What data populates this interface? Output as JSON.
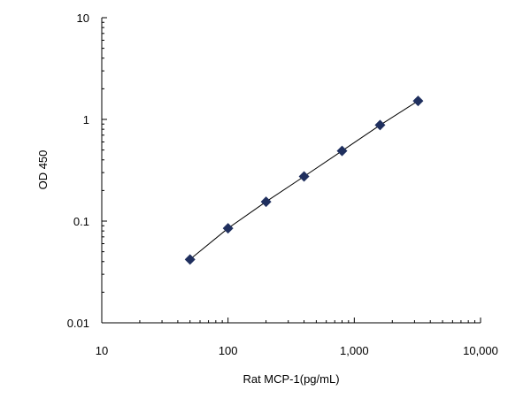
{
  "chart_data": {
    "type": "scatter",
    "xscale": "log",
    "yscale": "log",
    "xlim": [
      10,
      10000
    ],
    "ylim": [
      0.01,
      10
    ],
    "xlabel": "Rat MCP-1(pg/mL)",
    "ylabel": "OD 450",
    "x_ticks": [
      {
        "value": 10,
        "label": "10"
      },
      {
        "value": 100,
        "label": "100"
      },
      {
        "value": 1000,
        "label": "1,000"
      },
      {
        "value": 10000,
        "label": "10,000"
      }
    ],
    "y_ticks": [
      {
        "value": 0.01,
        "label": "0.01"
      },
      {
        "value": 0.1,
        "label": "0.1"
      },
      {
        "value": 1,
        "label": "1"
      },
      {
        "value": 10,
        "label": "10"
      }
    ],
    "grid": false,
    "marker": "diamond",
    "trendline": true,
    "colors": {
      "marker": "#1f2f5e",
      "line": "#000000",
      "axis": "#000000"
    },
    "series": [
      {
        "x": [
          50,
          100,
          200,
          400,
          800,
          1600,
          3200
        ],
        "y": [
          0.042,
          0.085,
          0.155,
          0.275,
          0.49,
          0.88,
          1.52
        ]
      }
    ]
  }
}
